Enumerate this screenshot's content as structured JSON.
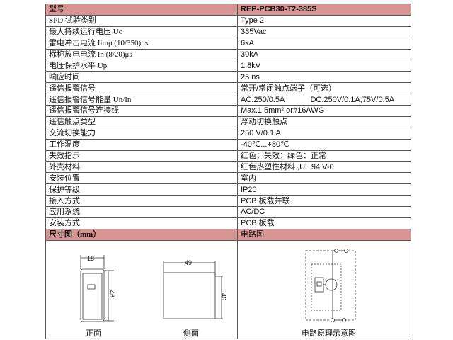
{
  "header": {
    "label": "型号",
    "value": "REP-PCB30-T2-385S"
  },
  "rows": [
    {
      "label": "SPD 试验类别",
      "value": "Type 2"
    },
    {
      "label": "最大持续运行电压 Uc",
      "value": "385Vac"
    },
    {
      "label": "雷电冲击电流  Iimp (10/350)μs",
      "value": "6kA"
    },
    {
      "label": "标称放电电流 In (8/20)μs",
      "value": "30kA"
    },
    {
      "label": "电压保护水平  Up",
      "value": "1.8kV"
    },
    {
      "label": "响应时间",
      "value": "25 ns"
    },
    {
      "label": "遥信报警信号",
      "value": "常开/常闭触点端子（可选）"
    },
    {
      "label": "遥信报警信号能量 Un/In",
      "value": "AC:250/0.5A            DC:250V/0.1A;75V/0.5A"
    },
    {
      "label": "遥信报警信号连接线",
      "value": "Max.1.5mm² or#16AWG"
    },
    {
      "label": "遥信触点类型",
      "value": "浮动切换触点"
    },
    {
      "label": "交流切换能力",
      "value": "250 V/0.1 A"
    },
    {
      "label": "工作温度",
      "value": "-40℃...+80℃"
    },
    {
      "label": "失效指示",
      "value": "红色：失效；绿色：正常"
    },
    {
      "label": "外壳材料",
      "value": "红色热塑性材料 ,UL 94 V-0"
    },
    {
      "label": "安装位置",
      "value": "室内"
    },
    {
      "label": "保护等级",
      "value": "IP20"
    },
    {
      "label": "接入方式",
      "value": "PCB 板载并联"
    },
    {
      "label": "应用系统",
      "value": "AC/DC"
    },
    {
      "label": "安装方式",
      "value": "PCB 板载"
    }
  ],
  "drawings_header": {
    "dimensions": "尺寸图（mm）",
    "circuit": "电路图"
  },
  "drawings": {
    "front_width": "18",
    "front_height": "46",
    "side_width": "49",
    "side_height": "46",
    "front_caption": "正面",
    "side_caption": "侧面",
    "circuit_caption": "电路原理示意图"
  },
  "colors": {
    "header_bg": "#d99494"
  }
}
